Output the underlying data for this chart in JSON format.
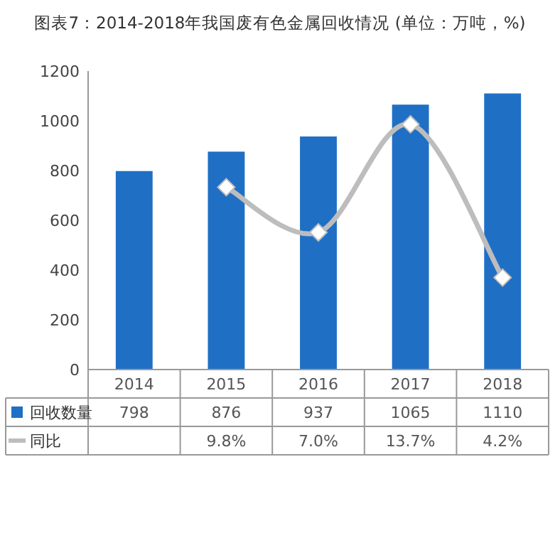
{
  "chart_data": {
    "type": "bar",
    "title": "图表7：2014-2018年我国废有色金属回收情况 (单位：万吨，%)",
    "categories": [
      "2014",
      "2015",
      "2016",
      "2017",
      "2018"
    ],
    "series": [
      {
        "name": "回收数量",
        "color": "#1f6fc5",
        "values": [
          798,
          876,
          937,
          1065,
          1110
        ]
      },
      {
        "name": "同比",
        "type": "line",
        "axis": "y2",
        "color": "#bdbdbd",
        "values": [
          null,
          9.8,
          7.0,
          13.7,
          4.2
        ],
        "value_labels": [
          null,
          "9.8%",
          "7.0%",
          "13.7%",
          "4.2%"
        ]
      }
    ],
    "ylim": [
      0,
      1200
    ],
    "yticks": [
      0,
      200,
      400,
      600,
      800,
      1000,
      1200
    ],
    "y2lim": [
      -1.5,
      17
    ],
    "tick_labels": "xy",
    "marker": "diamond",
    "line_style": "solid",
    "data_labels": true,
    "grid": false,
    "legend": "bottom left"
  }
}
